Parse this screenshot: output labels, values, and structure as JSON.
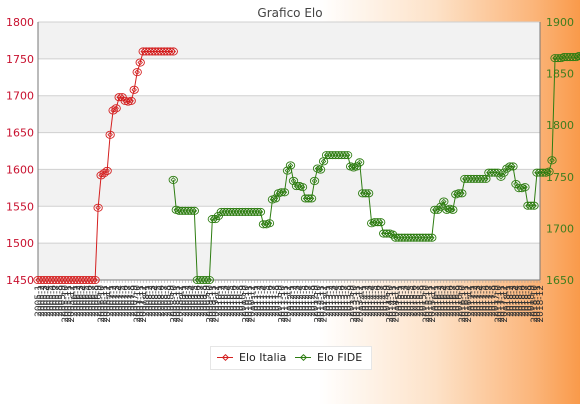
{
  "chart_data": {
    "type": "line",
    "title": "Grafico Elo",
    "xlabel": "",
    "ylabel": "",
    "grid": true,
    "legend_position": "bottom",
    "y_left": {
      "min": 1450,
      "max": 1800,
      "ticks": [
        1450,
        1500,
        1550,
        1600,
        1650,
        1700,
        1750,
        1800
      ],
      "color": "#c8102e"
    },
    "y_right": {
      "min": 1650,
      "max": 1900,
      "ticks": [
        1650,
        1700,
        1750,
        1800,
        1850,
        1900
      ],
      "color": "#3e7d1e"
    },
    "x_tick_labels": [
      "2005-1",
      "2005-2",
      "2005-3",
      "2005-4",
      "2005-5",
      "2005-6",
      "2005-7",
      "2005-8",
      "2005-9",
      "2005-10",
      "2005-11",
      "2005-12",
      "2006-1",
      "2006-2",
      "2006-3",
      "2006-4",
      "2006-5",
      "2006-6",
      "2006-7",
      "2006-8",
      "2006-9",
      "2006-10",
      "2006-11",
      "2006-12",
      "2007-1",
      "2007-2",
      "2007-3",
      "2007-4",
      "2007-5",
      "2007-6",
      "2007-7",
      "2007-8",
      "2007-9",
      "2007-10",
      "2007-11",
      "2007-12",
      "2008-1",
      "2008-2",
      "2008-3",
      "2008-4",
      "2008-5",
      "2008-6",
      "2008-7",
      "2008-8",
      "2008-9",
      "2008-10",
      "2008-11",
      "2008-12",
      "2009-1",
      "2009-2",
      "2009-3",
      "2009-4",
      "2009-5",
      "2009-6",
      "2009-7",
      "2009-8",
      "2009-9",
      "2009-10",
      "2009-11",
      "2009-12",
      "2010-1",
      "2010-2",
      "2010-3",
      "2010-4",
      "2010-5",
      "2010-6",
      "2010-7",
      "2010-8",
      "2010-9",
      "2010-10",
      "2010-11",
      "2010-12",
      "2011-1",
      "2011-2",
      "2011-3",
      "2011-4",
      "2011-5",
      "2011-6",
      "2011-7",
      "2011-8",
      "2011-9",
      "2011-10",
      "2011-11",
      "2011-12",
      "2012-1",
      "2012-2",
      "2012-3",
      "2012-4",
      "2012-5",
      "2012-6",
      "2012-7",
      "2012-8",
      "2012-9",
      "2012-10",
      "2012-11",
      "2012-12",
      "2013-1",
      "2013-2",
      "2013-3",
      "2013-4",
      "2013-5",
      "2013-6",
      "2013-7",
      "2013-8",
      "2013-9",
      "2013-10",
      "2013-11",
      "2013-12",
      "2014-1",
      "2014-2",
      "2014-3",
      "2014-4",
      "2014-5",
      "2014-6",
      "2014-7",
      "2014-8",
      "2014-9",
      "2014-10",
      "2014-11",
      "2014-12",
      "2015-1",
      "2015-2",
      "2015-3",
      "2015-4",
      "2015-5",
      "2015-6",
      "2015-7",
      "2015-8",
      "2015-9",
      "2015-10",
      "2015-11",
      "2015-12",
      "2016-1",
      "2016-2",
      "2016-3",
      "2016-4",
      "2016-5",
      "2016-6",
      "2016-7",
      "2016-8",
      "2016-9",
      "2016-10",
      "2016-11",
      "2016-12",
      "2017-1",
      "2017-2",
      "2017-3",
      "2017-4",
      "2017-5",
      "2017-6",
      "2017-7",
      "2017-8",
      "2017-9",
      "2017-10",
      "2017-11",
      "2017-12",
      "2018-1",
      "2018-2",
      "2018-3",
      "2018-4",
      "2018-5",
      "2018-6",
      "2018-7",
      "2018-8",
      "2018-9",
      "2018-10",
      "2018-11",
      "2018-12"
    ],
    "series": [
      {
        "name": "Elo Italia",
        "axis": "left",
        "color": "#d42020",
        "points": [
          [
            0,
            1450
          ],
          [
            1,
            1450
          ],
          [
            2,
            1450
          ],
          [
            3,
            1450
          ],
          [
            4,
            1450
          ],
          [
            5,
            1450
          ],
          [
            6,
            1450
          ],
          [
            7,
            1450
          ],
          [
            8,
            1450
          ],
          [
            9,
            1450
          ],
          [
            10,
            1450
          ],
          [
            11,
            1450
          ],
          [
            12,
            1450
          ],
          [
            13,
            1450
          ],
          [
            14,
            1450
          ],
          [
            15,
            1450
          ],
          [
            16,
            1450
          ],
          [
            17,
            1450
          ],
          [
            18,
            1450
          ],
          [
            19,
            1450
          ],
          [
            20,
            1548
          ],
          [
            21,
            1592
          ],
          [
            22,
            1595
          ],
          [
            23,
            1598
          ],
          [
            24,
            1647
          ],
          [
            25,
            1680
          ],
          [
            26,
            1683
          ],
          [
            27,
            1698
          ],
          [
            28,
            1698
          ],
          [
            29,
            1693
          ],
          [
            30,
            1692
          ],
          [
            31,
            1693
          ],
          [
            32,
            1708
          ],
          [
            33,
            1732
          ],
          [
            34,
            1745
          ],
          [
            35,
            1760
          ],
          [
            36,
            1760
          ],
          [
            37,
            1760
          ],
          [
            38,
            1760
          ],
          [
            39,
            1760
          ],
          [
            40,
            1760
          ],
          [
            41,
            1760
          ],
          [
            42,
            1760
          ],
          [
            43,
            1760
          ],
          [
            44,
            1760
          ],
          [
            45,
            1760
          ]
        ]
      },
      {
        "name": "Elo FIDE",
        "axis": "right",
        "color": "#2e7d12",
        "points": [
          [
            45,
            1747
          ],
          [
            46,
            1718
          ],
          [
            47,
            1717
          ],
          [
            48,
            1717
          ],
          [
            49,
            1717
          ],
          [
            50,
            1717
          ],
          [
            51,
            1717
          ],
          [
            52,
            1717
          ],
          [
            53,
            1650
          ],
          [
            54,
            1650
          ],
          [
            55,
            1650
          ],
          [
            56,
            1650
          ],
          [
            57,
            1650
          ],
          [
            58,
            1709
          ],
          [
            59,
            1709
          ],
          [
            60,
            1712
          ],
          [
            61,
            1716
          ],
          [
            62,
            1716
          ],
          [
            63,
            1716
          ],
          [
            64,
            1716
          ],
          [
            65,
            1716
          ],
          [
            66,
            1716
          ],
          [
            67,
            1716
          ],
          [
            68,
            1716
          ],
          [
            69,
            1716
          ],
          [
            70,
            1716
          ],
          [
            71,
            1716
          ],
          [
            72,
            1716
          ],
          [
            73,
            1716
          ],
          [
            74,
            1716
          ],
          [
            75,
            1704
          ],
          [
            76,
            1704
          ],
          [
            77,
            1705
          ],
          [
            78,
            1728
          ],
          [
            79,
            1729
          ],
          [
            80,
            1734
          ],
          [
            81,
            1735
          ],
          [
            82,
            1735
          ],
          [
            83,
            1756
          ],
          [
            84,
            1761
          ],
          [
            85,
            1746
          ],
          [
            86,
            1741
          ],
          [
            87,
            1741
          ],
          [
            88,
            1740
          ],
          [
            89,
            1729
          ],
          [
            90,
            1729
          ],
          [
            91,
            1729
          ],
          [
            92,
            1746
          ],
          [
            93,
            1758
          ],
          [
            94,
            1757
          ],
          [
            95,
            1765
          ],
          [
            96,
            1771
          ],
          [
            97,
            1771
          ],
          [
            98,
            1771
          ],
          [
            99,
            1771
          ],
          [
            100,
            1771
          ],
          [
            101,
            1771
          ],
          [
            102,
            1771
          ],
          [
            103,
            1771
          ],
          [
            104,
            1760
          ],
          [
            105,
            1759
          ],
          [
            106,
            1760
          ],
          [
            107,
            1764
          ],
          [
            108,
            1734
          ],
          [
            109,
            1734
          ],
          [
            110,
            1734
          ],
          [
            111,
            1705
          ],
          [
            112,
            1706
          ],
          [
            113,
            1706
          ],
          [
            114,
            1706
          ],
          [
            115,
            1695
          ],
          [
            116,
            1695
          ],
          [
            117,
            1695
          ],
          [
            118,
            1694
          ],
          [
            119,
            1691
          ],
          [
            120,
            1691
          ],
          [
            121,
            1691
          ],
          [
            122,
            1691
          ],
          [
            123,
            1691
          ],
          [
            124,
            1691
          ],
          [
            125,
            1691
          ],
          [
            126,
            1691
          ],
          [
            127,
            1691
          ],
          [
            128,
            1691
          ],
          [
            129,
            1691
          ],
          [
            130,
            1691
          ],
          [
            131,
            1691
          ],
          [
            132,
            1718
          ],
          [
            133,
            1718
          ],
          [
            134,
            1721
          ],
          [
            135,
            1726
          ],
          [
            136,
            1718
          ],
          [
            137,
            1719
          ],
          [
            138,
            1718
          ],
          [
            139,
            1733
          ],
          [
            140,
            1734
          ],
          [
            141,
            1734
          ],
          [
            142,
            1748
          ],
          [
            143,
            1748
          ],
          [
            144,
            1748
          ],
          [
            145,
            1748
          ],
          [
            146,
            1748
          ],
          [
            147,
            1748
          ],
          [
            148,
            1748
          ],
          [
            149,
            1748
          ],
          [
            150,
            1754
          ],
          [
            151,
            1754
          ],
          [
            152,
            1754
          ],
          [
            153,
            1754
          ],
          [
            154,
            1750
          ],
          [
            155,
            1754
          ],
          [
            156,
            1758
          ],
          [
            157,
            1760
          ],
          [
            158,
            1760
          ],
          [
            159,
            1743
          ],
          [
            160,
            1739
          ],
          [
            161,
            1739
          ],
          [
            162,
            1740
          ],
          [
            163,
            1722
          ],
          [
            164,
            1722
          ],
          [
            165,
            1722
          ],
          [
            166,
            1754
          ],
          [
            167,
            1754
          ],
          [
            168,
            1754
          ],
          [
            169,
            1754
          ],
          [
            170,
            1755
          ],
          [
            171,
            1766
          ],
          [
            172,
            1865
          ],
          [
            173,
            1865
          ],
          [
            174,
            1865
          ],
          [
            175,
            1866
          ],
          [
            176,
            1866
          ],
          [
            177,
            1866
          ],
          [
            178,
            1866
          ],
          [
            179,
            1866
          ],
          [
            180,
            1867
          ],
          [
            181,
            1867
          ],
          [
            182,
            1869
          ],
          [
            183,
            1869
          ],
          [
            184,
            1869
          ],
          [
            185,
            1873
          ],
          [
            186,
            1873
          ],
          [
            187,
            1873
          ],
          [
            188,
            1873
          ],
          [
            189,
            1871
          ],
          [
            190,
            1871
          ],
          [
            191,
            1871
          ],
          [
            192,
            1871
          ],
          [
            193,
            1871
          ],
          [
            194,
            1871
          ],
          [
            195,
            1871
          ],
          [
            196,
            1871
          ],
          [
            197,
            1871
          ],
          [
            198,
            1871
          ],
          [
            199,
            1871
          ],
          [
            200,
            1871
          ]
        ]
      }
    ]
  }
}
